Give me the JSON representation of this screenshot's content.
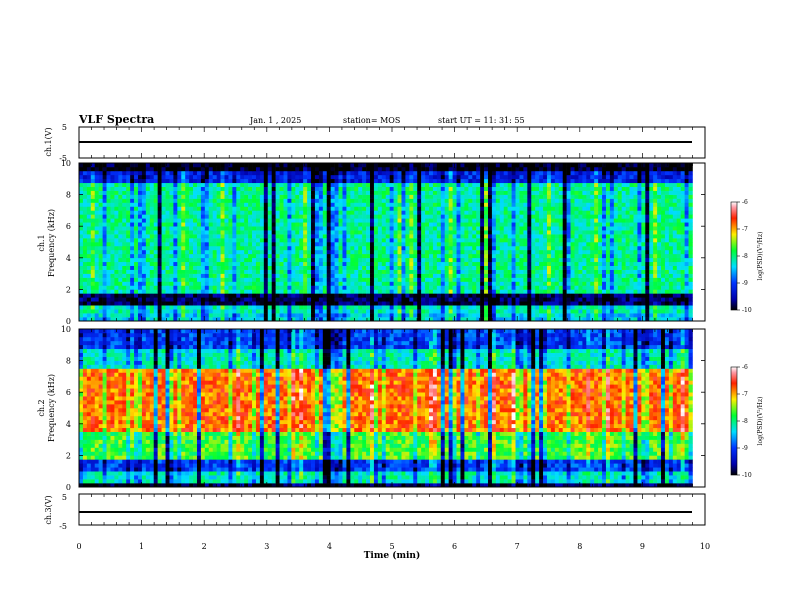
{
  "header": {
    "title": "VLF Spectra",
    "date": "Jan. 1 , 2025",
    "station": "station= MOS",
    "start": "start UT =  11: 31: 55"
  },
  "chart_data": [
    {
      "type": "line",
      "panel": "ch1-waveform",
      "ylabel": "ch.1(V)",
      "ylim": [
        -5,
        5
      ],
      "yticks": [
        "5",
        "-5"
      ],
      "series": [
        {
          "x": [
            0,
            9.8
          ],
          "y": [
            0,
            0
          ]
        }
      ]
    },
    {
      "type": "heatmap",
      "panel": "ch1-spectrogram",
      "ylabel": [
        "ch.1",
        "Frequency (kHz)"
      ],
      "ylim": [
        0,
        10
      ],
      "yticks": [
        "0",
        "2",
        "4",
        "6",
        "8",
        "10"
      ],
      "x_extent_min": 9.8,
      "colorbar": {
        "label": "log(PSD)(V²/Hz)",
        "range": [
          -10,
          -6
        ],
        "ticks": [
          "-6",
          "-7",
          "-8",
          "-9",
          "-10"
        ]
      },
      "bands": [
        {
          "f": [
            0,
            0.5
          ],
          "level": 0.4
        },
        {
          "f": [
            0.5,
            1.0
          ],
          "level": 0.45
        },
        {
          "f": [
            1.0,
            1.7
          ],
          "level": 0.05
        },
        {
          "f": [
            1.7,
            8.8
          ],
          "level": 0.48
        },
        {
          "f": [
            8.8,
            9.4
          ],
          "level": 0.2
        },
        {
          "f": [
            9.4,
            10
          ],
          "level": 0.0
        }
      ]
    },
    {
      "type": "heatmap",
      "panel": "ch2-spectrogram",
      "ylabel": [
        "ch.2",
        "Frequency (kHz)"
      ],
      "ylim": [
        0,
        10
      ],
      "yticks": [
        "0",
        "2",
        "4",
        "6",
        "8",
        "10"
      ],
      "x_extent_min": 9.8,
      "colorbar": {
        "label": "log(PSD)(V²/Hz)",
        "range": [
          -10,
          -6
        ],
        "ticks": [
          "-6",
          "-7",
          "-8",
          "-9",
          "-10"
        ]
      },
      "bands": [
        {
          "f": [
            0,
            0.3
          ],
          "level": 0.05
        },
        {
          "f": [
            0.3,
            1.0
          ],
          "level": 0.45
        },
        {
          "f": [
            1.0,
            1.8
          ],
          "level": 0.25
        },
        {
          "f": [
            1.8,
            3.6
          ],
          "level": 0.58
        },
        {
          "f": [
            3.6,
            7.6
          ],
          "level": 0.8
        },
        {
          "f": [
            7.6,
            8.8
          ],
          "level": 0.45
        },
        {
          "f": [
            8.8,
            10
          ],
          "level": 0.25
        }
      ]
    },
    {
      "type": "line",
      "panel": "ch3-waveform",
      "ylabel": "ch.3(V)",
      "ylim": [
        -5,
        5
      ],
      "yticks": [
        "5",
        "-5"
      ],
      "series": [
        {
          "x": [
            0,
            9.8
          ],
          "y": [
            0,
            0
          ]
        }
      ]
    }
  ],
  "x_axis": {
    "label": "Time (min)",
    "range": [
      0,
      10
    ],
    "ticks": [
      "0",
      "1",
      "2",
      "3",
      "4",
      "5",
      "6",
      "7",
      "8",
      "9",
      "10"
    ]
  }
}
